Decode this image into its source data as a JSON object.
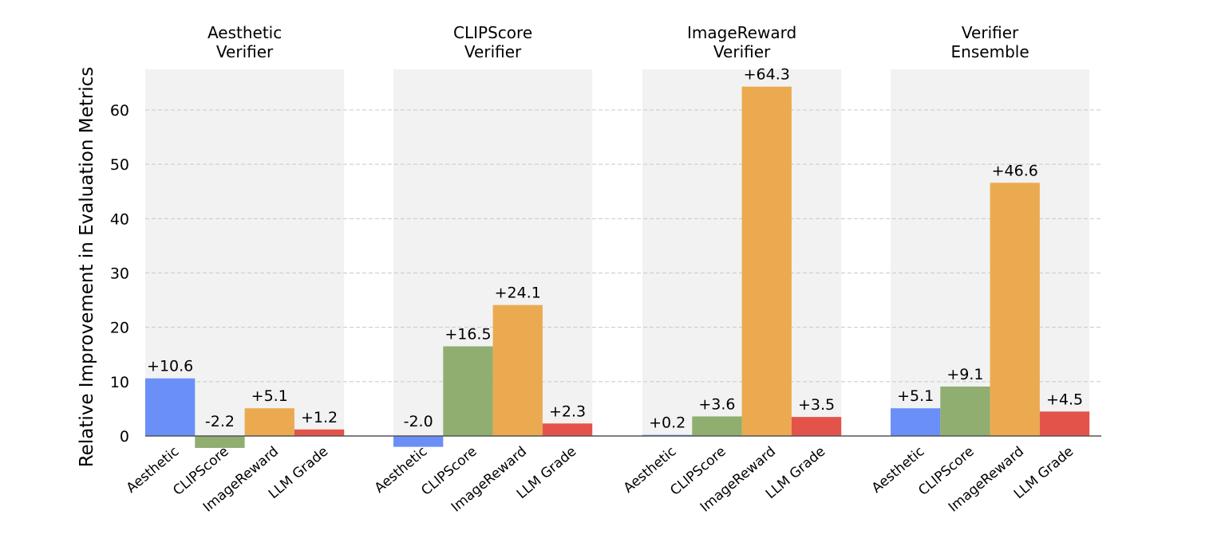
{
  "chart_data": {
    "type": "bar",
    "ylabel": "Relative Improvement in Evaluation Metrics",
    "ylim": [
      -2.5,
      67
    ],
    "yticks": [
      0,
      10,
      20,
      30,
      40,
      50,
      60
    ],
    "grid": "horizontal-dashed",
    "categories": [
      "Aesthetic",
      "CLIPScore",
      "ImageReward",
      "LLM Grade"
    ],
    "colors": {
      "Aesthetic": "#6a8ff7",
      "CLIPScore": "#8fae70",
      "ImageReward": "#ebaa50",
      "LLM Grade": "#e3534a",
      "panel_background": "#f2f2f2",
      "grid": "#c8c8c8",
      "axis": "#555555"
    },
    "panels": [
      {
        "title_lines": [
          "Aesthetic",
          "Verifier"
        ],
        "values": [
          10.6,
          -2.2,
          5.1,
          1.2
        ],
        "labels": [
          "+10.6",
          "-2.2",
          "+5.1",
          "+1.2"
        ]
      },
      {
        "title_lines": [
          "CLIPScore",
          "Verifier"
        ],
        "values": [
          -2.0,
          16.5,
          24.1,
          2.3
        ],
        "labels": [
          "-2.0",
          "+16.5",
          "+24.1",
          "+2.3"
        ]
      },
      {
        "title_lines": [
          "ImageReward",
          "Verifier"
        ],
        "values": [
          0.2,
          3.6,
          64.3,
          3.5
        ],
        "labels": [
          "+0.2",
          "+3.6",
          "+64.3",
          "+3.5"
        ]
      },
      {
        "title_lines": [
          "Verifier",
          "Ensemble"
        ],
        "values": [
          5.1,
          9.1,
          46.6,
          4.5
        ],
        "labels": [
          "+5.1",
          "+9.1",
          "+46.6",
          "+4.5"
        ]
      }
    ]
  }
}
